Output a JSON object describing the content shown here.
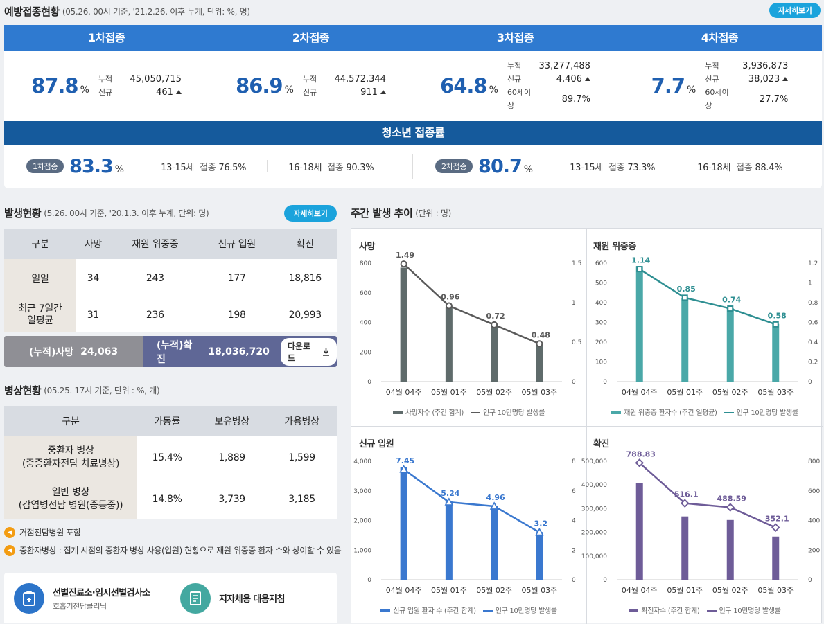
{
  "vaccination": {
    "title": "예방접종현황",
    "subtitle": "(05.26. 00시 기준, '21.2.26. 이후 누계, 단위: %, 명)",
    "detail_button": "자세히보기",
    "doses": [
      {
        "label": "1차접종",
        "rate": "87.8",
        "unit": "%",
        "rows": [
          {
            "k": "누적",
            "v": "45,050,715"
          },
          {
            "k": "신규",
            "v": "461",
            "up": true
          }
        ]
      },
      {
        "label": "2차접종",
        "rate": "86.9",
        "unit": "%",
        "rows": [
          {
            "k": "누적",
            "v": "44,572,344"
          },
          {
            "k": "신규",
            "v": "911",
            "up": true
          }
        ]
      },
      {
        "label": "3차접종",
        "rate": "64.8",
        "unit": "%",
        "rows": [
          {
            "k": "누적",
            "v": "33,277,488"
          },
          {
            "k": "신규",
            "v": "4,406",
            "up": true
          },
          {
            "k": "60세이상",
            "v": "89.7%"
          }
        ]
      },
      {
        "label": "4차접종",
        "rate": "7.7",
        "unit": "%",
        "rows": [
          {
            "k": "누적",
            "v": "3,936,873"
          },
          {
            "k": "신규",
            "v": "38,023",
            "up": true
          },
          {
            "k": "60세이상",
            "v": "27.7%"
          }
        ]
      }
    ],
    "teen": {
      "title": "청소년 접종률",
      "groups": [
        {
          "tag": "1차접종",
          "rate": "83.3",
          "unit": "%",
          "items": [
            {
              "age": "13-15세",
              "k": "접종",
              "v": "76.5%"
            },
            {
              "age": "16-18세",
              "k": "접종",
              "v": "90.3%"
            }
          ]
        },
        {
          "tag": "2차접종",
          "rate": "80.7",
          "unit": "%",
          "items": [
            {
              "age": "13-15세",
              "k": "접종",
              "v": "73.3%"
            },
            {
              "age": "16-18세",
              "k": "접종",
              "v": "88.4%"
            }
          ]
        }
      ]
    }
  },
  "occurrence": {
    "title": "발생현황",
    "subtitle": "(5.26. 00시 기준, '20.1.3. 이후 누계, 단위: 명)",
    "detail_button": "자세히보기",
    "headers": [
      "구분",
      "사망",
      "재원 위중증",
      "신규 입원",
      "확진"
    ],
    "rows": [
      {
        "label": "일일",
        "values": [
          "34",
          "243",
          "177",
          "18,816"
        ]
      },
      {
        "label": "최근 7일간\n일평균",
        "values": [
          "31",
          "236",
          "198",
          "20,993"
        ]
      }
    ],
    "cum_death_label": "(누적)사망",
    "cum_death_value": "24,063",
    "cum_conf_label": "(누적)확진",
    "cum_conf_value": "18,036,720",
    "download_label": "다운로드"
  },
  "beds": {
    "title": "병상현황",
    "subtitle": "(05.25. 17시 기준, 단위 : %, 개)",
    "headers": [
      "구분",
      "가동률",
      "보유병상",
      "가용병상"
    ],
    "rows": [
      {
        "label": "중환자 병상\n(중증환자전담 치료병상)",
        "values": [
          "15.4%",
          "1,889",
          "1,599"
        ]
      },
      {
        "label": "일반 병상\n(감염병전담 병원(중등중))",
        "values": [
          "14.8%",
          "3,739",
          "3,185"
        ]
      }
    ],
    "notes": [
      "거점전담병원 포함",
      "중환자병상 : 집계 시점의 중환자 병상 사용(입원) 현황으로 재원 위중증 환자 수와 상이할 수 있음"
    ]
  },
  "links": [
    {
      "title": "선별진료소·임시선별검사소",
      "sub": "호흡기전담클리닉"
    },
    {
      "title": "지자체용 대응지침",
      "sub": ""
    }
  ],
  "weekly": {
    "title": "주간 발생 추이",
    "subtitle": "(단위 : 명)"
  },
  "chart_data": [
    {
      "type": "bar",
      "title": "사망",
      "categories": [
        "04월 04주",
        "05월 01주",
        "05월 02주",
        "05월 03주"
      ],
      "series": [
        {
          "name": "사망자수 (주간 합계)",
          "kind": "bar",
          "axis": "left",
          "values": [
            770,
            500,
            380,
            260
          ]
        },
        {
          "name": "인구 10만명당 발생률",
          "kind": "line",
          "axis": "right",
          "values": [
            1.49,
            0.96,
            0.72,
            0.48
          ]
        }
      ],
      "left_ticks": [
        "0",
        "200",
        "400",
        "600",
        "800"
      ],
      "right_ticks": [
        "0",
        "0.5",
        "1",
        "1.5"
      ],
      "ylim_left": [
        0,
        800
      ],
      "ylim_right": [
        0,
        1.5
      ],
      "bar_color": "#5f6b6b",
      "line_color": "#5a5a5a",
      "marker": "circle"
    },
    {
      "type": "bar",
      "title": "재원 위중증",
      "categories": [
        "04월 04주",
        "05월 01주",
        "05월 02주",
        "05월 03주"
      ],
      "series": [
        {
          "name": "재원 위중증 환자수 (주간 일평균)",
          "kind": "bar",
          "axis": "left",
          "values": [
            585,
            425,
            372,
            292
          ]
        },
        {
          "name": "인구 10만명당 발생률",
          "kind": "line",
          "axis": "right",
          "values": [
            1.14,
            0.85,
            0.74,
            0.58
          ]
        }
      ],
      "left_ticks": [
        "0",
        "100",
        "200",
        "300",
        "400",
        "500",
        "600"
      ],
      "right_ticks": [
        "0",
        "0.2",
        "0.4",
        "0.6",
        "0.8",
        "1",
        "1.2"
      ],
      "ylim_left": [
        0,
        600
      ],
      "ylim_right": [
        0,
        1.2
      ],
      "bar_color": "#4aa8a8",
      "line_color": "#2e8f92",
      "marker": "square"
    },
    {
      "type": "bar",
      "title": "신규 입원",
      "categories": [
        "04월 04주",
        "05월 01주",
        "05월 02주",
        "05월 03주"
      ],
      "series": [
        {
          "name": "신규 입원 환자 수 (주간 합계)",
          "kind": "bar",
          "axis": "left",
          "values": [
            3800,
            2640,
            2500,
            1610
          ]
        },
        {
          "name": "인구 10만명당 발생률",
          "kind": "line",
          "axis": "right",
          "values": [
            7.45,
            5.24,
            4.96,
            3.2
          ]
        }
      ],
      "left_ticks": [
        "0",
        "1,000",
        "2,000",
        "3,000",
        "4,000"
      ],
      "right_ticks": [
        "0",
        "2",
        "4",
        "6",
        "8"
      ],
      "ylim_left": [
        0,
        4000
      ],
      "ylim_right": [
        0,
        8
      ],
      "bar_color": "#3a78cf",
      "line_color": "#3a78cf",
      "marker": "triangle"
    },
    {
      "type": "bar",
      "title": "확진",
      "categories": [
        "04월 04주",
        "05월 01주",
        "05월 02주",
        "05월 03주"
      ],
      "series": [
        {
          "name": "확진자수 (주간 합계)",
          "kind": "bar",
          "axis": "left",
          "values": [
            408000,
            267000,
            252000,
            182000
          ]
        },
        {
          "name": "인구 10만명당 발생률",
          "kind": "line",
          "axis": "right",
          "values": [
            788.83,
            516.1,
            488.59,
            352.1
          ]
        }
      ],
      "left_ticks": [
        "0",
        "100,000",
        "200,000",
        "300,000",
        "400,000",
        "500,000"
      ],
      "right_ticks": [
        "0",
        "200",
        "400",
        "600",
        "800"
      ],
      "ylim_left": [
        0,
        500000
      ],
      "ylim_right": [
        0,
        800
      ],
      "bar_color": "#6e5c98",
      "line_color": "#6e5c98",
      "marker": "diamond"
    }
  ]
}
